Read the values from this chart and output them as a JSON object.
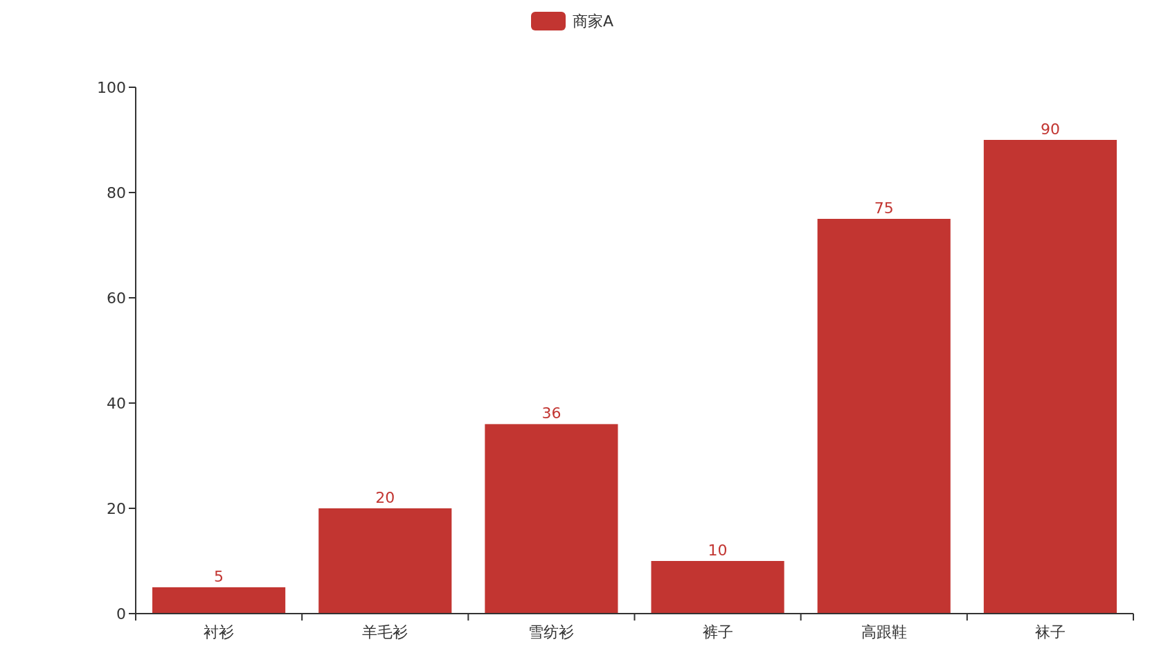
{
  "chart_data": {
    "type": "bar",
    "categories": [
      "衬衫",
      "羊毛衫",
      "雪纺衫",
      "裤子",
      "高跟鞋",
      "袜子"
    ],
    "series": [
      {
        "name": "商家A",
        "color": "#c23531",
        "values": [
          5,
          20,
          36,
          10,
          75,
          90
        ]
      }
    ],
    "ylim": [
      0,
      100
    ],
    "yticks": [
      0,
      20,
      40,
      60,
      80,
      100
    ],
    "data_labels": true,
    "legend": "top",
    "grid": false
  }
}
